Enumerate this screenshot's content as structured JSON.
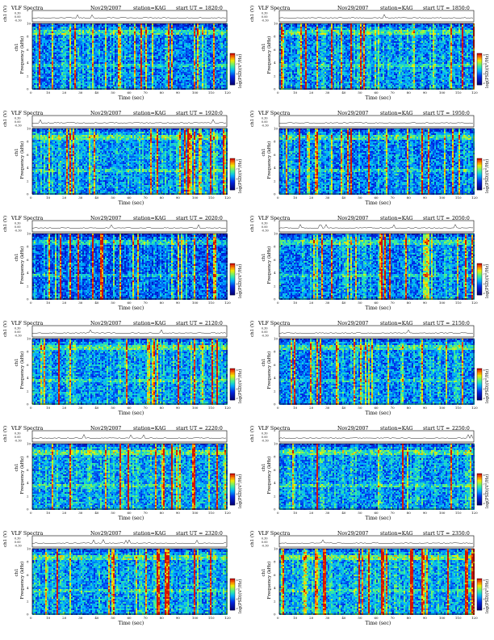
{
  "header_common": {
    "title": "VLF Spectra",
    "date": "Nov29/2007",
    "station": "station=KAG",
    "start_prefix": "start UT ="
  },
  "axis_labels": {
    "ch1_label": "ch1 (V)",
    "freq_label": "Frequency (kHz)",
    "freq_side_label": "ch1",
    "time_label": "Time (sec)",
    "colorbar_label": "log(PSD)(V²/Hz)"
  },
  "chart_data": [
    {
      "type": "heatmap",
      "start_ut": "1820:0",
      "intensity": 0.45
    },
    {
      "type": "heatmap",
      "start_ut": "1850:0",
      "intensity": 0.5
    },
    {
      "type": "heatmap",
      "start_ut": "1920:0",
      "intensity": 0.55
    },
    {
      "type": "heatmap",
      "start_ut": "1950:0",
      "intensity": 0.45
    },
    {
      "type": "heatmap",
      "start_ut": "2020:0",
      "intensity": 0.3
    },
    {
      "type": "heatmap",
      "start_ut": "2050:0",
      "intensity": 0.45
    },
    {
      "type": "heatmap",
      "start_ut": "2120:0",
      "intensity": 0.55
    },
    {
      "type": "heatmap",
      "start_ut": "2150:0",
      "intensity": 0.5
    },
    {
      "type": "heatmap",
      "start_ut": "2220:0",
      "intensity": 0.6
    },
    {
      "type": "heatmap",
      "start_ut": "2250:0",
      "intensity": 0.55
    },
    {
      "type": "heatmap",
      "start_ut": "2320:0",
      "intensity": 0.55
    },
    {
      "type": "heatmap",
      "start_ut": "2350:0",
      "intensity": 0.6
    }
  ],
  "axes": {
    "x_ticks": [
      "0",
      "10",
      "20",
      "30",
      "40",
      "50",
      "60",
      "70",
      "80",
      "90",
      "100",
      "110",
      "120"
    ],
    "x_range": [
      0,
      120
    ],
    "y_ticks": [
      "0",
      "2",
      "4",
      "6",
      "8",
      "10"
    ],
    "y_range": [
      0,
      10
    ],
    "ch1_ticks": [
      "0.30",
      "0.00",
      "-0.30"
    ],
    "colorbar_ticks": [
      "-6",
      "-7",
      "-8",
      "-9"
    ]
  },
  "colors": {
    "bg_deep": "#00007a",
    "bg_blue": "#0020d0",
    "mid_cyan": "#00b8ff",
    "green": "#40f080",
    "yellow": "#f0f000",
    "red": "#e02000"
  }
}
